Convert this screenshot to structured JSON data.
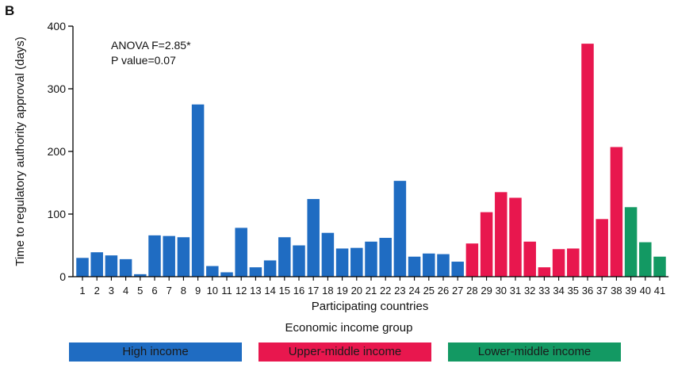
{
  "panel_label": "B",
  "annotation": {
    "line1": "ANOVA F=2.85*",
    "line2": "P value=0.07"
  },
  "legend": {
    "title": "Economic income group",
    "items": [
      {
        "label": "High income",
        "color": "#1f6cc2"
      },
      {
        "label": "Upper-middle income",
        "color": "#e8174e"
      },
      {
        "label": "Lower-middle income",
        "color": "#139963"
      }
    ]
  },
  "chart_data": {
    "type": "bar",
    "xlabel": "Participating countries",
    "ylabel": "Time to regulatory authority approval (days)",
    "ylim": [
      0,
      400
    ],
    "yticks": [
      0,
      100,
      200,
      300,
      400
    ],
    "categories": [
      "1",
      "2",
      "3",
      "4",
      "5",
      "6",
      "7",
      "8",
      "9",
      "10",
      "11",
      "12",
      "13",
      "14",
      "15",
      "16",
      "17",
      "18",
      "19",
      "20",
      "21",
      "22",
      "23",
      "24",
      "25",
      "26",
      "27",
      "28",
      "29",
      "30",
      "31",
      "32",
      "33",
      "34",
      "35",
      "36",
      "37",
      "38",
      "39",
      "40",
      "41"
    ],
    "values": [
      30,
      39,
      34,
      28,
      4,
      66,
      65,
      63,
      275,
      17,
      7,
      78,
      15,
      26,
      63,
      50,
      124,
      70,
      45,
      46,
      56,
      62,
      153,
      32,
      37,
      36,
      24,
      53,
      103,
      135,
      126,
      56,
      15,
      44,
      45,
      372,
      92,
      207,
      111,
      55,
      32
    ],
    "groups": [
      "High income",
      "High income",
      "High income",
      "High income",
      "High income",
      "High income",
      "High income",
      "High income",
      "High income",
      "High income",
      "High income",
      "High income",
      "High income",
      "High income",
      "High income",
      "High income",
      "High income",
      "High income",
      "High income",
      "High income",
      "High income",
      "High income",
      "High income",
      "High income",
      "High income",
      "High income",
      "High income",
      "Upper-middle income",
      "Upper-middle income",
      "Upper-middle income",
      "Upper-middle income",
      "Upper-middle income",
      "Upper-middle income",
      "Upper-middle income",
      "Upper-middle income",
      "Upper-middle income",
      "Upper-middle income",
      "Upper-middle income",
      "Lower-middle income",
      "Lower-middle income",
      "Lower-middle income"
    ],
    "grid": false
  }
}
